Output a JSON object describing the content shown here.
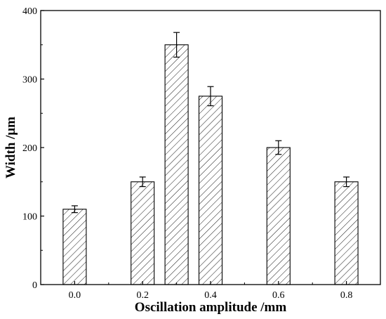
{
  "chart_data": {
    "type": "bar",
    "xlabel": "Oscillation amplitude /mm",
    "ylabel": "Width /μm",
    "x": [
      0.0,
      0.2,
      0.3,
      0.4,
      0.6,
      0.8
    ],
    "values": [
      110,
      150,
      350,
      275,
      200,
      150
    ],
    "errors": [
      5,
      7,
      18,
      14,
      10,
      7
    ],
    "xlim": [
      -0.1,
      0.9
    ],
    "ylim": [
      0,
      400
    ],
    "xticks": [
      "0.0",
      "0.2",
      "0.4",
      "0.6",
      "0.8"
    ],
    "yticks": [
      "0",
      "100",
      "200",
      "300",
      "400"
    ],
    "bar_fill": "hatched",
    "colors": {
      "bar_stroke": "#000000",
      "hatch": "#000000",
      "background": "#ffffff"
    },
    "grid": false,
    "legend": "none"
  }
}
